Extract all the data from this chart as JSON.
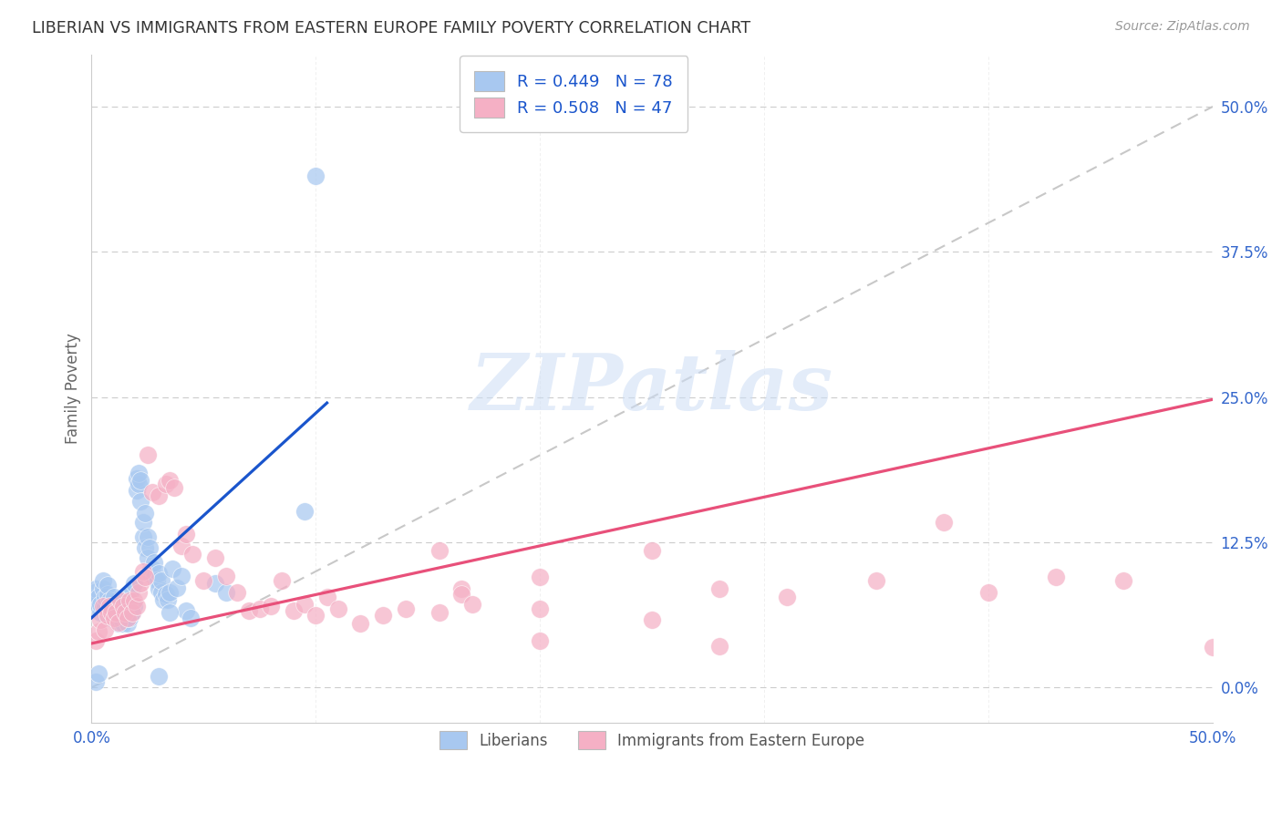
{
  "title": "LIBERIAN VS IMMIGRANTS FROM EASTERN EUROPE FAMILY POVERTY CORRELATION CHART",
  "source": "Source: ZipAtlas.com",
  "ylabel": "Family Poverty",
  "xlim": [
    0.0,
    0.5
  ],
  "ylim": [
    -0.03,
    0.545
  ],
  "blue_color": "#a8c8f0",
  "pink_color": "#f5b0c5",
  "blue_line_color": "#1a55cc",
  "pink_line_color": "#e8507a",
  "dashed_line_color": "#c8c8c8",
  "grid_color": "#cccccc",
  "background_color": "#ffffff",
  "title_color": "#333333",
  "source_color": "#999999",
  "axis_tick_color": "#3366cc",
  "ylabel_color": "#666666",
  "legend_label1": "Liberians",
  "legend_label2": "Immigrants from Eastern Europe",
  "blue_scatter_x": [
    0.001,
    0.001,
    0.002,
    0.002,
    0.003,
    0.003,
    0.004,
    0.004,
    0.005,
    0.005,
    0.006,
    0.006,
    0.007,
    0.007,
    0.008,
    0.008,
    0.009,
    0.009,
    0.01,
    0.01,
    0.01,
    0.011,
    0.011,
    0.012,
    0.012,
    0.013,
    0.013,
    0.014,
    0.014,
    0.015,
    0.015,
    0.016,
    0.016,
    0.017,
    0.017,
    0.018,
    0.018,
    0.019,
    0.019,
    0.02,
    0.02,
    0.021,
    0.021,
    0.022,
    0.022,
    0.023,
    0.023,
    0.024,
    0.024,
    0.025,
    0.025,
    0.026,
    0.026,
    0.027,
    0.028,
    0.028,
    0.029,
    0.03,
    0.03,
    0.031,
    0.031,
    0.032,
    0.033,
    0.034,
    0.035,
    0.036,
    0.038,
    0.04,
    0.042,
    0.044,
    0.002,
    0.003,
    0.03,
    0.035,
    0.095,
    0.1,
    0.055,
    0.06
  ],
  "blue_scatter_y": [
    0.075,
    0.082,
    0.078,
    0.085,
    0.07,
    0.078,
    0.065,
    0.072,
    0.085,
    0.092,
    0.07,
    0.078,
    0.08,
    0.088,
    0.065,
    0.075,
    0.06,
    0.07,
    0.065,
    0.07,
    0.078,
    0.06,
    0.066,
    0.055,
    0.068,
    0.06,
    0.068,
    0.055,
    0.066,
    0.06,
    0.07,
    0.055,
    0.065,
    0.06,
    0.08,
    0.065,
    0.085,
    0.07,
    0.09,
    0.17,
    0.18,
    0.175,
    0.185,
    0.16,
    0.178,
    0.13,
    0.142,
    0.12,
    0.15,
    0.112,
    0.13,
    0.1,
    0.12,
    0.102,
    0.095,
    0.108,
    0.092,
    0.085,
    0.098,
    0.082,
    0.092,
    0.076,
    0.08,
    0.076,
    0.082,
    0.102,
    0.086,
    0.096,
    0.066,
    0.06,
    0.005,
    0.012,
    0.01,
    0.065,
    0.152,
    0.44,
    0.09,
    0.082
  ],
  "pink_scatter_x": [
    0.002,
    0.003,
    0.004,
    0.005,
    0.006,
    0.007,
    0.008,
    0.009,
    0.01,
    0.011,
    0.012,
    0.013,
    0.014,
    0.015,
    0.016,
    0.017,
    0.018,
    0.019,
    0.02,
    0.021,
    0.022,
    0.023,
    0.024,
    0.025,
    0.027,
    0.03,
    0.033,
    0.035,
    0.037,
    0.04,
    0.042,
    0.045,
    0.05,
    0.055,
    0.06,
    0.065,
    0.07,
    0.075,
    0.08,
    0.085,
    0.09,
    0.095,
    0.1,
    0.105,
    0.11,
    0.155,
    0.165,
    0.2,
    0.25,
    0.28,
    0.31,
    0.35,
    0.38,
    0.4,
    0.43,
    0.46,
    0.5,
    0.155,
    0.2,
    0.25,
    0.165,
    0.17,
    0.14,
    0.13,
    0.12,
    0.2,
    0.28
  ],
  "pink_scatter_y": [
    0.04,
    0.048,
    0.058,
    0.07,
    0.05,
    0.062,
    0.07,
    0.065,
    0.06,
    0.065,
    0.056,
    0.075,
    0.07,
    0.065,
    0.06,
    0.075,
    0.065,
    0.075,
    0.07,
    0.082,
    0.09,
    0.1,
    0.095,
    0.2,
    0.168,
    0.165,
    0.175,
    0.178,
    0.172,
    0.122,
    0.132,
    0.115,
    0.092,
    0.112,
    0.096,
    0.082,
    0.066,
    0.068,
    0.07,
    0.092,
    0.066,
    0.072,
    0.062,
    0.078,
    0.068,
    0.118,
    0.085,
    0.068,
    0.118,
    0.036,
    0.078,
    0.092,
    0.142,
    0.082,
    0.095,
    0.092,
    0.035,
    0.065,
    0.04,
    0.058,
    0.08,
    0.072,
    0.068,
    0.062,
    0.055,
    0.095,
    0.085
  ],
  "blue_line_x0": 0.0,
  "blue_line_x1": 0.105,
  "blue_line_y0": 0.06,
  "blue_line_y1": 0.245,
  "pink_line_x0": 0.0,
  "pink_line_x1": 0.5,
  "pink_line_y0": 0.038,
  "pink_line_y1": 0.248
}
